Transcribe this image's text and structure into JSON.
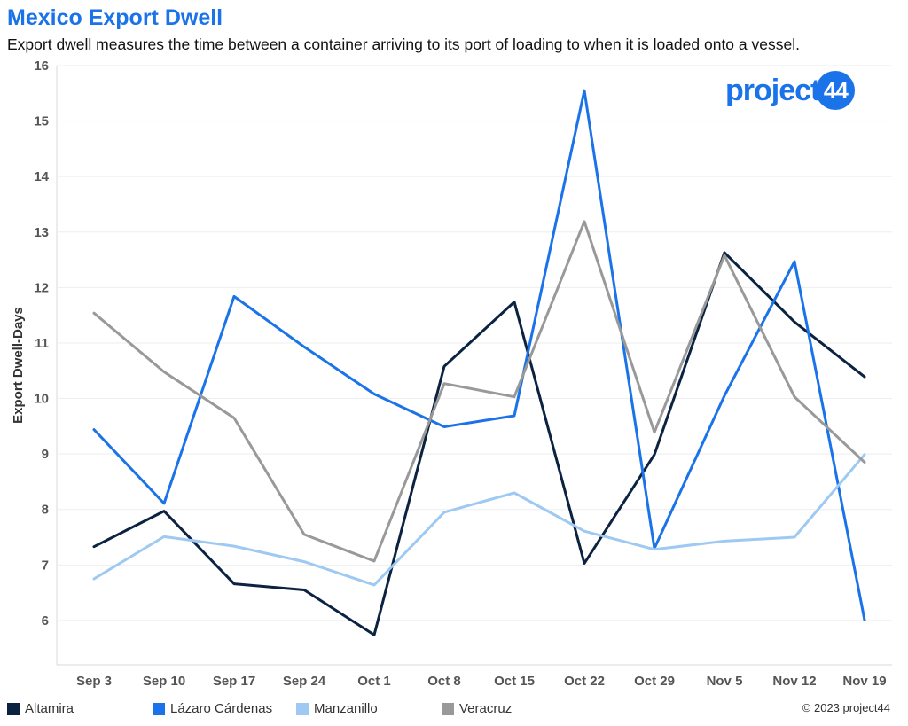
{
  "header": {
    "title": "Mexico Export Dwell",
    "subtitle": "Export dwell measures the time between a container arriving to its port of loading to when it is loaded onto a vessel."
  },
  "logo": {
    "word": "project",
    "badge": "44"
  },
  "footer": {
    "copyright": "© 2023 project44"
  },
  "chart_data": {
    "type": "line",
    "title": "Mexico Export Dwell",
    "subtitle": "Export dwell measures the time between a container arriving to its port of loading to when it is loaded onto a vessel.",
    "xlabel": "",
    "ylabel": "Export Dwell-Days",
    "ylim": [
      5.2,
      16
    ],
    "yticks": [
      6,
      7,
      8,
      9,
      10,
      11,
      12,
      13,
      14,
      15,
      16
    ],
    "grid": true,
    "legend_position": "bottom",
    "categories": [
      "Sep 3",
      "Sep 10",
      "Sep 17",
      "Sep 24",
      "Oct 1",
      "Oct 8",
      "Oct 15",
      "Oct 22",
      "Oct 29",
      "Nov 5",
      "Nov 12",
      "Nov 19"
    ],
    "series": [
      {
        "name": "Altamira",
        "color": "#0b2241",
        "values": [
          7.33,
          7.97,
          6.66,
          6.55,
          5.74,
          10.58,
          11.74,
          7.03,
          8.99,
          12.63,
          11.38,
          10.39
        ]
      },
      {
        "name": "Lázaro Cárdenas",
        "color": "#1a73e8",
        "values": [
          9.44,
          8.11,
          11.84,
          10.93,
          10.08,
          9.49,
          9.69,
          15.55,
          7.3,
          10.05,
          12.47,
          6.01
        ]
      },
      {
        "name": "Manzanillo",
        "color": "#9ec9f3",
        "values": [
          6.75,
          7.51,
          7.34,
          7.06,
          6.64,
          7.95,
          8.3,
          7.61,
          7.28,
          7.43,
          7.5,
          8.99
        ]
      },
      {
        "name": "Veracruz",
        "color": "#999999",
        "values": [
          11.54,
          10.48,
          9.65,
          7.55,
          7.07,
          10.27,
          10.03,
          13.19,
          9.39,
          12.58,
          10.03,
          8.85
        ]
      }
    ]
  }
}
